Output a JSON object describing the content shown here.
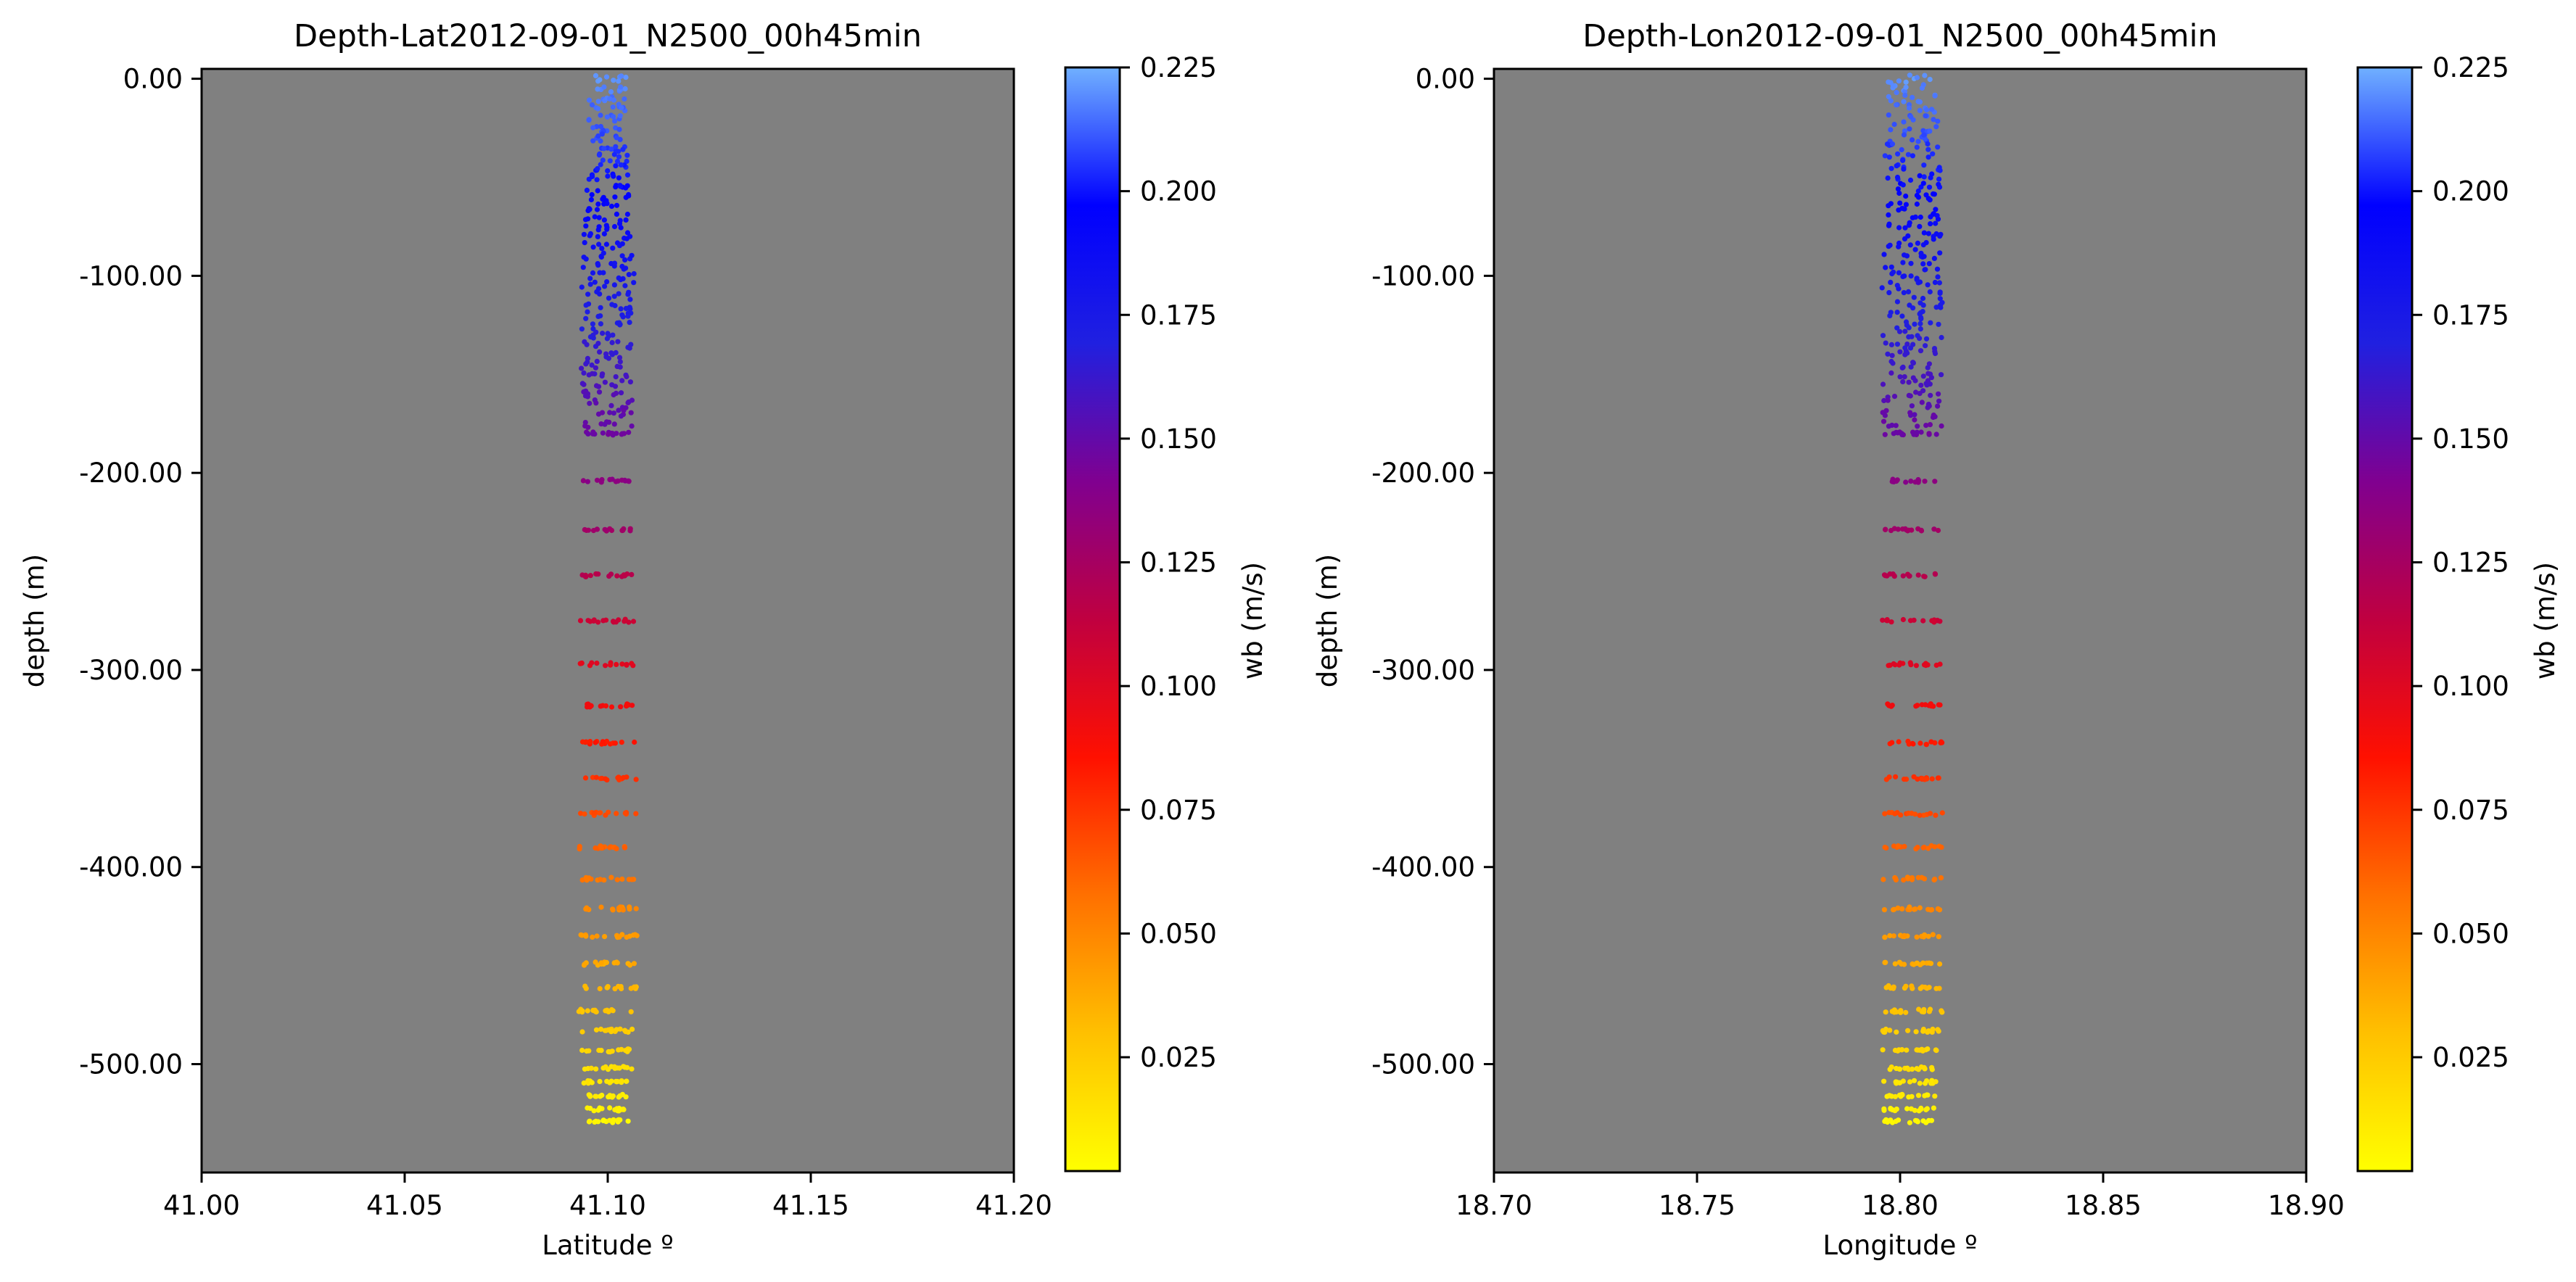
{
  "chart_data": [
    {
      "type": "scatter",
      "title": "Depth-Lat2012-09-01_N2500_00h45min",
      "xlabel": "Latitude º",
      "ylabel": "depth (m)",
      "xlim": [
        41.0,
        41.2
      ],
      "ylim": [
        -555,
        5
      ],
      "xticks": [
        "41.00",
        "41.05",
        "41.10",
        "41.15",
        "41.20"
      ],
      "yticks": [
        "0.00",
        "-100.00",
        "-200.00",
        "-300.00",
        "-400.00",
        "-500.00"
      ],
      "background_color": "#808080",
      "grid": false,
      "points_description": "Particle positions clustered at latitude ~41.09-41.11, depth 0 to about -530 m, colored by wb",
      "profile": [
        {
          "depth": 0,
          "center": 41.1,
          "spread": 0.0045
        },
        {
          "depth": -50,
          "center": 41.1,
          "spread": 0.005
        },
        {
          "depth": -100,
          "center": 41.1,
          "spread": 0.0065
        },
        {
          "depth": -150,
          "center": 41.1,
          "spread": 0.0065
        },
        {
          "depth": -200,
          "center": 41.1,
          "spread": 0.006
        },
        {
          "depth": -300,
          "center": 41.1,
          "spread": 0.007
        },
        {
          "depth": -400,
          "center": 41.1,
          "spread": 0.007
        },
        {
          "depth": -470,
          "center": 41.1,
          "spread": 0.0075
        },
        {
          "depth": -530,
          "center": 41.1,
          "spread": 0.005
        }
      ],
      "colorbar": {
        "label": "wb (m/s)",
        "range": [
          0.002,
          0.225
        ],
        "ticks": [
          "0.025",
          "0.050",
          "0.075",
          "0.100",
          "0.125",
          "0.150",
          "0.175",
          "0.200",
          "0.225"
        ],
        "colormap": [
          "#ffff00",
          "#ffc000",
          "#ff7000",
          "#ff1000",
          "#c00040",
          "#800090",
          "#2020e0",
          "#0000ff",
          "#70b0ff"
        ]
      }
    },
    {
      "type": "scatter",
      "title": "Depth-Lon2012-09-01_N2500_00h45min",
      "xlabel": "Longitude º",
      "ylabel": "depth (m)",
      "xlim": [
        18.7,
        18.9
      ],
      "ylim": [
        -555,
        5
      ],
      "xticks": [
        "18.70",
        "18.75",
        "18.80",
        "18.85",
        "18.90"
      ],
      "yticks": [
        "0.00",
        "-100.00",
        "-200.00",
        "-300.00",
        "-400.00",
        "-500.00"
      ],
      "background_color": "#808080",
      "grid": false,
      "points_description": "Particle positions clustered at longitude ~18.79-18.81, depth 0 to about -530 m, colored by wb",
      "profile": [
        {
          "depth": 0,
          "center": 18.803,
          "spread": 0.006
        },
        {
          "depth": -50,
          "center": 18.803,
          "spread": 0.007
        },
        {
          "depth": -100,
          "center": 18.803,
          "spread": 0.0075
        },
        {
          "depth": -150,
          "center": 18.803,
          "spread": 0.0075
        },
        {
          "depth": -200,
          "center": 18.803,
          "spread": 0.007
        },
        {
          "depth": -300,
          "center": 18.803,
          "spread": 0.0075
        },
        {
          "depth": -400,
          "center": 18.803,
          "spread": 0.0075
        },
        {
          "depth": -470,
          "center": 18.803,
          "spread": 0.0075
        },
        {
          "depth": -530,
          "center": 18.802,
          "spread": 0.006
        }
      ],
      "colorbar": {
        "label": "wb (m/s)",
        "range": [
          0.002,
          0.225
        ],
        "ticks": [
          "0.025",
          "0.050",
          "0.075",
          "0.100",
          "0.125",
          "0.150",
          "0.175",
          "0.200",
          "0.225"
        ],
        "colormap": [
          "#ffff00",
          "#ffc000",
          "#ff7000",
          "#ff1000",
          "#c00040",
          "#800090",
          "#2020e0",
          "#0000ff",
          "#70b0ff"
        ]
      }
    }
  ]
}
